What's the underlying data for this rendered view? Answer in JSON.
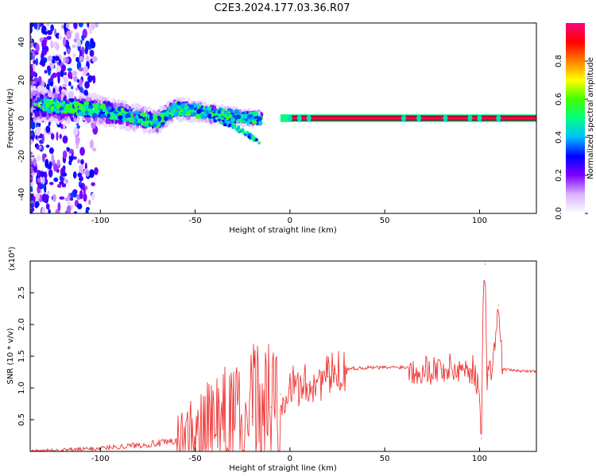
{
  "figure_title": "C2E3.2024.177.03.36.R07",
  "chart_data": [
    {
      "type": "heatmap",
      "title": "",
      "xlabel": "Height of straight line (km)",
      "ylabel": "Frequency (Hz)",
      "xlim": [
        -137,
        130
      ],
      "ylim": [
        -50,
        50
      ],
      "xticks": [
        -100,
        -50,
        0,
        50,
        100
      ],
      "yticks": [
        -40,
        -20,
        0,
        20,
        40
      ],
      "colorbar": {
        "label": "Normalized spectral amplitude",
        "range": [
          0,
          1
        ],
        "ticks": [
          0.0,
          0.2,
          0.4,
          0.6,
          0.8
        ],
        "colors": [
          "#ffffff",
          "#d9b3ff",
          "#8000ff",
          "#0000ff",
          "#00bfff",
          "#00ff80",
          "#40ff00",
          "#ffff00",
          "#ff8000",
          "#ff0000",
          "#ff0080"
        ]
      },
      "ridge": {
        "x": [
          -130,
          -120,
          -110,
          -100,
          -90,
          -80,
          -70,
          -60,
          -50,
          -40,
          -30,
          -20,
          -10,
          0,
          10,
          130
        ],
        "freq": [
          7,
          6,
          5,
          4,
          2,
          0,
          -2,
          5,
          4,
          2,
          1,
          0,
          0,
          0,
          0,
          0
        ]
      },
      "branch": {
        "x": [
          -40,
          -35,
          -30,
          -25,
          -20,
          -16
        ],
        "freq": [
          1,
          -2,
          -4,
          -7,
          -10,
          -12
        ]
      },
      "constant_band": {
        "x": [
          0,
          130
        ],
        "freq": 0,
        "note": "constant line at 0 Hz"
      }
    },
    {
      "type": "line",
      "title": "",
      "xlabel": "Height of straight line (km)",
      "ylabel": "SNR (10 * v/v)",
      "y_multiplier": "(x10⁴)",
      "xlim": [
        -137,
        130
      ],
      "ylim": [
        0,
        3.0
      ],
      "xticks": [
        -100,
        -50,
        0,
        50,
        100
      ],
      "yticks": [
        0.5,
        1.0,
        1.5,
        2.0,
        2.5
      ],
      "series": [
        {
          "color": "#ee2222",
          "x": [
            -137,
            -120,
            -100,
            -80,
            -60,
            -50,
            -40,
            -30,
            -20,
            -10,
            -5,
            0,
            10,
            20,
            30,
            40,
            50,
            60,
            65,
            70,
            80,
            90,
            95,
            98,
            100,
            101,
            102,
            103,
            104,
            105,
            108,
            110,
            112,
            120,
            130
          ],
          "y": [
            0.0,
            0.02,
            0.05,
            0.1,
            0.15,
            0.2,
            0.35,
            0.45,
            0.55,
            0.7,
            0.9,
            1.0,
            1.05,
            1.18,
            1.3,
            1.32,
            1.32,
            1.33,
            1.3,
            1.3,
            1.3,
            1.3,
            1.3,
            1.25,
            0.8,
            0.2,
            2.4,
            2.95,
            1.2,
            1.2,
            1.6,
            2.3,
            1.3,
            1.27,
            1.26
          ]
        }
      ]
    }
  ]
}
